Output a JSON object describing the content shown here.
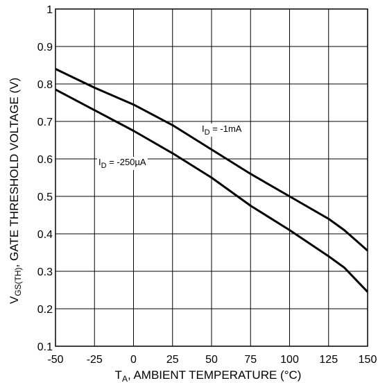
{
  "chart_data": {
    "type": "line",
    "xlabel_main": "T",
    "xlabel_sub": "A",
    "xlabel_rest": ", AMBIENT TEMPERATURE (°C)",
    "ylabel_main": "V",
    "ylabel_sub": "GS(TH)",
    "ylabel_rest": ",  GATE THRESHOLD VOLTAGE (V)",
    "xlim": [
      -50,
      150
    ],
    "ylim": [
      0.1,
      1.0
    ],
    "xticks": [
      "-50",
      "-25",
      "0",
      "25",
      "50",
      "75",
      "100",
      "125",
      "150"
    ],
    "yticks": [
      "0.1",
      "0.2",
      "0.3",
      "0.4",
      "0.5",
      "0.6",
      "0.7",
      "0.8",
      "0.9",
      "1"
    ],
    "xtick_values": [
      -50,
      -25,
      0,
      25,
      50,
      75,
      100,
      125,
      150
    ],
    "ytick_values": [
      0.1,
      0.2,
      0.3,
      0.4,
      0.5,
      0.6,
      0.7,
      0.8,
      0.9,
      1.0
    ],
    "grid": true,
    "series": [
      {
        "name_main": "I",
        "name_sub": "D",
        "name_rest": " = -1mA",
        "x": [
          -50,
          -25,
          0,
          25,
          50,
          75,
          100,
          125,
          135,
          150
        ],
        "y": [
          0.84,
          0.79,
          0.745,
          0.69,
          0.625,
          0.56,
          0.5,
          0.44,
          0.41,
          0.355
        ]
      },
      {
        "name_main": "I",
        "name_sub": "D",
        "name_rest": " = -250µA",
        "x": [
          -50,
          -25,
          0,
          25,
          50,
          75,
          100,
          125,
          135,
          150
        ],
        "y": [
          0.785,
          0.73,
          0.675,
          0.615,
          0.55,
          0.475,
          0.41,
          0.34,
          0.31,
          0.245
        ]
      }
    ]
  }
}
